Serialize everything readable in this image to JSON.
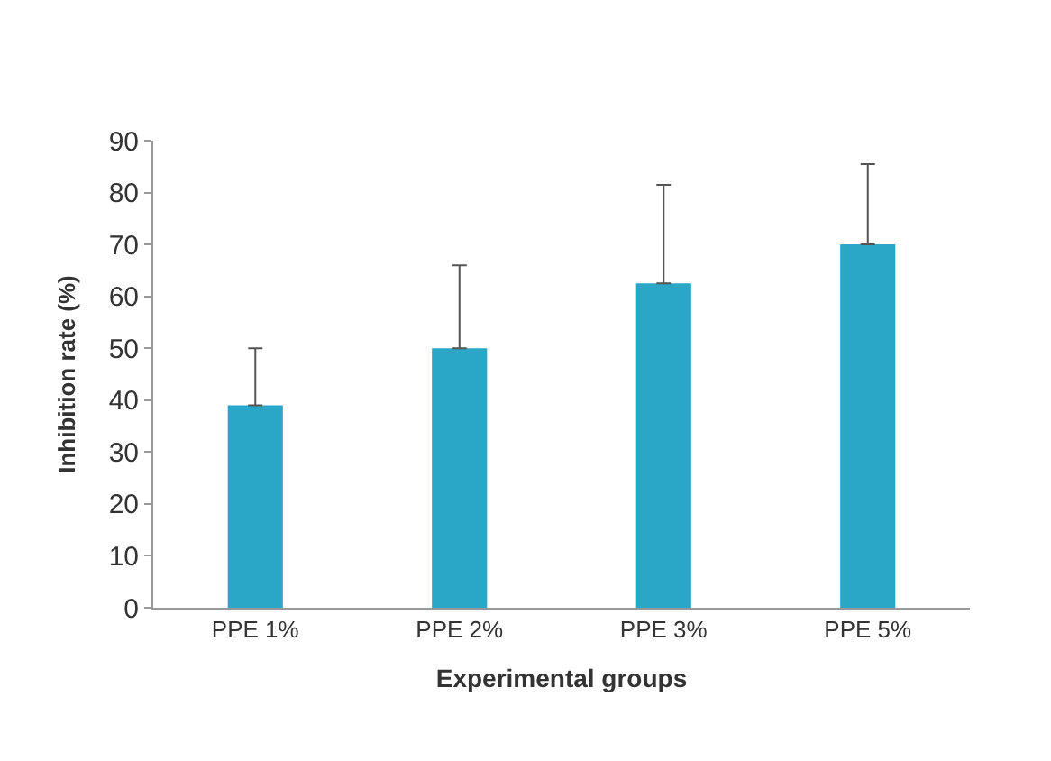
{
  "chart_data": {
    "type": "bar",
    "xlabel": "Experimental groups",
    "ylabel": "Inhibition rate (%)",
    "categories": [
      "PPE 1%",
      "PPE 2%",
      "PPE 3%",
      "PPE 5%"
    ],
    "values": [
      39,
      50,
      62.5,
      70
    ],
    "errors": [
      [
        39,
        50
      ],
      [
        50,
        66
      ],
      [
        62.5,
        81.5
      ],
      [
        70,
        85.5
      ]
    ],
    "color": "#2aa6c6",
    "ylim": [
      0,
      90
    ],
    "yticks": [
      0,
      10,
      20,
      30,
      40,
      50,
      60,
      70,
      80,
      90
    ],
    "grid": false
  }
}
